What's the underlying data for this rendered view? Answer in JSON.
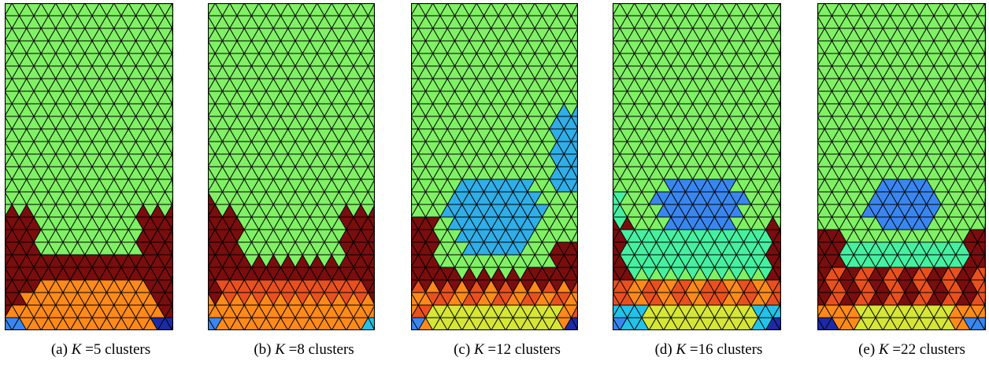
{
  "panels": [
    {
      "tag": "(a)",
      "k_symbol": "K",
      "k_text": "=5 clusters"
    },
    {
      "tag": "(b)",
      "k_symbol": "K",
      "k_text": "=8 clusters"
    },
    {
      "tag": "(c)",
      "k_symbol": "K",
      "k_text": "=12 clusters"
    },
    {
      "tag": "(d)",
      "k_symbol": "K",
      "k_text": "=16 clusters"
    },
    {
      "tag": "(e)",
      "k_symbol": "K",
      "k_text": "=22 clusters"
    }
  ],
  "colors": {
    "mesh_line": "#000000",
    "light_green": "#80f065",
    "dark_red": "#7a0d0d",
    "orange": "#ff8a1a",
    "blue": "#2faee8",
    "mid_blue": "#3a86f0",
    "red_orange": "#e9501e",
    "yellow": "#d6e636",
    "teal_green": "#45f0a0",
    "navy": "#1c2aa8",
    "cyan": "#22c3e8"
  }
}
